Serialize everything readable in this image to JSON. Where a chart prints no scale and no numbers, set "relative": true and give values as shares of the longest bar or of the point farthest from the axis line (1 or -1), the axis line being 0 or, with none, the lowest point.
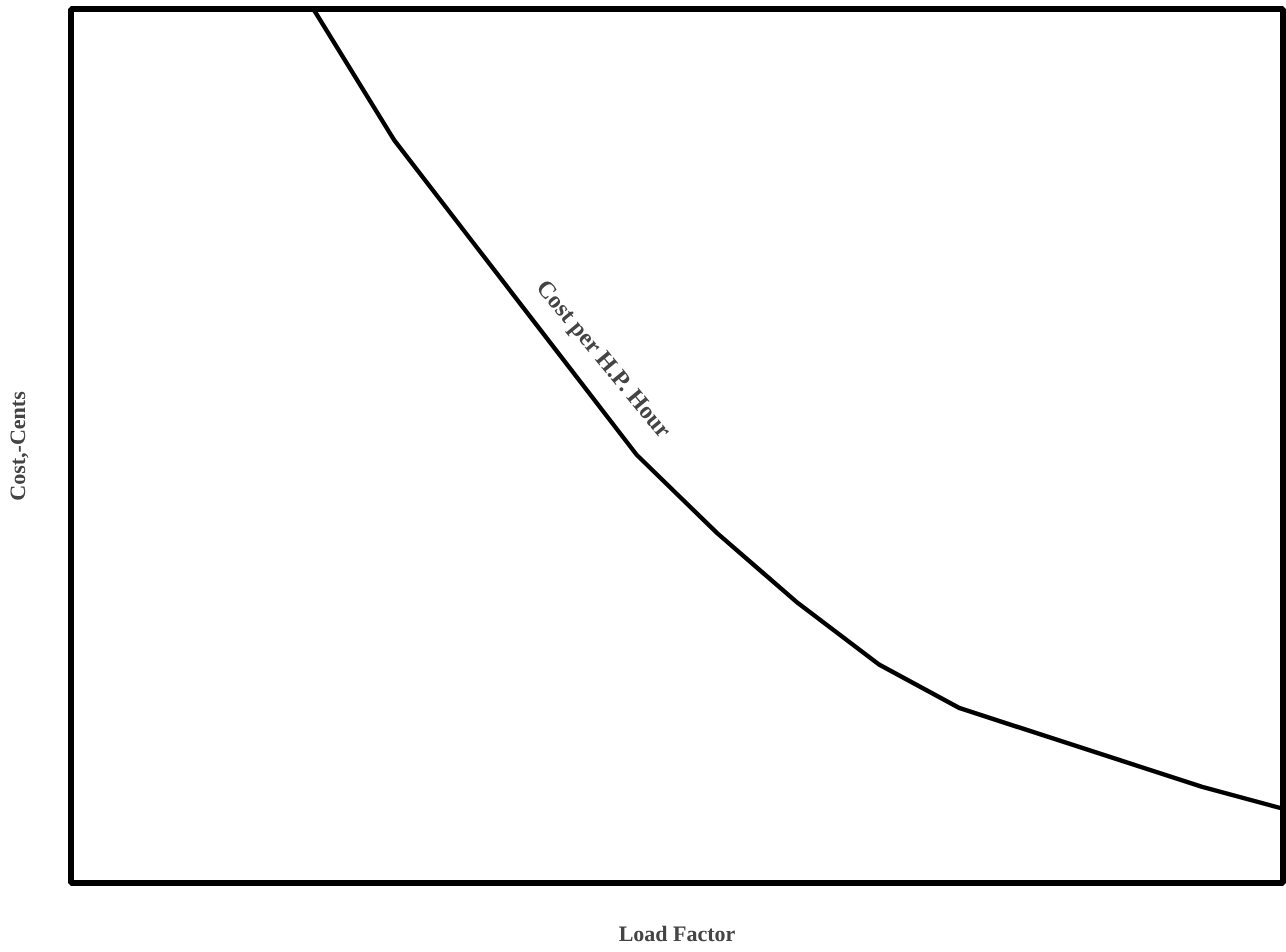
{
  "chart_data": {
    "type": "line",
    "relative": true,
    "xlabel": "Load Factor",
    "ylabel": "Cost,-Cents",
    "categories": [
      null,
      null,
      null,
      null,
      null,
      null,
      null,
      null,
      null,
      null,
      null,
      null,
      null,
      null,
      null,
      null
    ],
    "series": [
      {
        "color": "#000000",
        "values": [
          null,
          null,
          null,
          1.0,
          0.85,
          0.73,
          0.61,
          0.49,
          0.4,
          0.32,
          0.25,
          0.2,
          0.17,
          0.14,
          0.11,
          0.085
        ]
      }
    ],
    "annotations": [
      "Cost per H.P. Hour"
    ],
    "grid": false,
    "marker": "none",
    "line_style": "solid"
  }
}
